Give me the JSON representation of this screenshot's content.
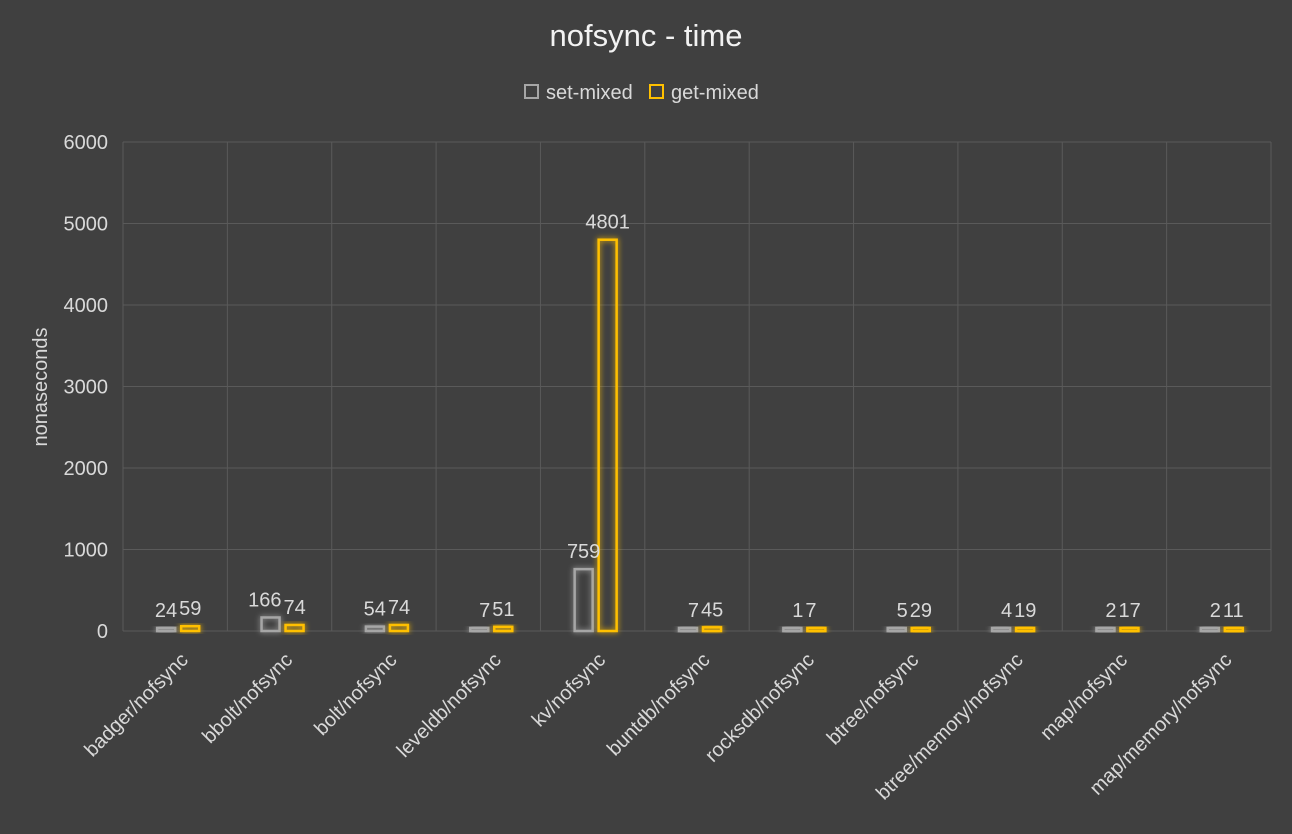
{
  "chart_data": {
    "type": "bar",
    "title": "nofsync - time",
    "ylabel": "nonaseconds",
    "xlabel": "",
    "ylim": [
      0,
      6000
    ],
    "yticks": [
      0,
      1000,
      2000,
      3000,
      4000,
      5000,
      6000
    ],
    "grid": true,
    "legend_position": "top",
    "categories": [
      "badger/nofsync",
      "bbolt/nofsync",
      "bolt/nofsync",
      "leveldb/nofsync",
      "kv/nofsync",
      "buntdb/nofsync",
      "rocksdb/nofsync",
      "btree/nofsync",
      "btree/memory/nofsync",
      "map/nofsync",
      "map/memory/nofsync"
    ],
    "series": [
      {
        "name": "set-mixed",
        "color": "#a6a6a6",
        "values": [
          24,
          166,
          54,
          7,
          759,
          7,
          1,
          5,
          4,
          2,
          2
        ]
      },
      {
        "name": "get-mixed",
        "color": "#ffc000",
        "values": [
          59,
          74,
          74,
          51,
          4801,
          45,
          7,
          29,
          19,
          17,
          11
        ]
      }
    ]
  }
}
